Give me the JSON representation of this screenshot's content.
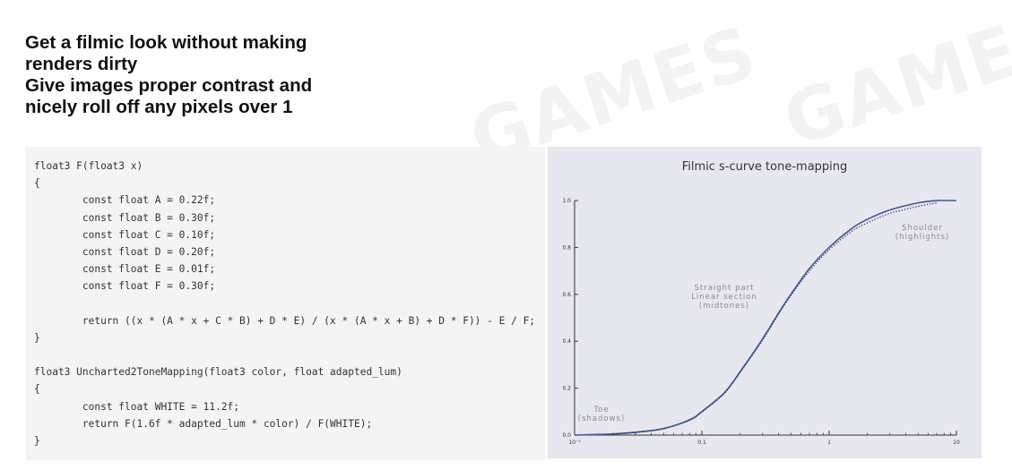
{
  "headline": {
    "lines": [
      "Get a filmic look without making",
      "renders dirty",
      "Give images proper contrast and",
      "nicely roll off any pixels over 1"
    ]
  },
  "code": {
    "lines": [
      "float3 F(float3 x)",
      "{",
      "        const float A = 0.22f;",
      "        const float B = 0.30f;",
      "        const float C = 0.10f;",
      "        const float D = 0.20f;",
      "        const float E = 0.01f;",
      "        const float F = 0.30f;",
      "",
      "        return ((x * (A * x + C * B) + D * E) / (x * (A * x + B) + D * F)) - E / F;",
      "}",
      "",
      "float3 Uncharted2ToneMapping(float3 color, float adapted_lum)",
      "{",
      "        const float WHITE = 11.2f;",
      "        return F(1.6f * adapted_lum * color) / F(WHITE);",
      "}"
    ]
  },
  "colors": {
    "chart_bg": "#e7e7ef",
    "curve": "#3f5a96",
    "dotted": "#1f2f5a",
    "label": "#8a8a8a"
  },
  "chart_data": {
    "type": "line",
    "title": "Filmic s-curve tone-mapping",
    "xscale": "log",
    "xlim": [
      0.01,
      10
    ],
    "ylim": [
      0,
      1.0
    ],
    "x_ticks": [
      "10⁻²",
      "0.1",
      "1",
      "10"
    ],
    "y_ticks": [
      "0.0",
      "0.2",
      "0.4",
      "0.6",
      "0.8",
      "1.0"
    ],
    "annotations": [
      {
        "lines": [
          "Toe",
          "(shadows)"
        ],
        "anchor": "bottom-left"
      },
      {
        "lines": [
          "Straight part",
          "Linear section",
          "(midtones)"
        ],
        "anchor": "middle"
      },
      {
        "lines": [
          "Shoulder",
          "(highlights)"
        ],
        "anchor": "top-right"
      }
    ],
    "series": [
      {
        "style": "solid",
        "x": [
          0.01,
          0.02,
          0.03,
          0.05,
          0.08,
          0.1,
          0.15,
          0.2,
          0.3,
          0.4,
          0.5,
          0.7,
          1,
          1.5,
          2,
          3,
          5,
          7,
          8,
          10
        ],
        "y": [
          0.0,
          0.005,
          0.012,
          0.028,
          0.065,
          0.1,
          0.18,
          0.27,
          0.41,
          0.52,
          0.6,
          0.71,
          0.8,
          0.88,
          0.92,
          0.96,
          0.99,
          1.0,
          1.0,
          1.0
        ]
      },
      {
        "style": "dotted",
        "x": [
          0.02,
          0.03,
          0.05,
          0.08,
          0.1,
          0.15,
          0.2,
          0.3,
          0.4,
          0.5,
          0.7,
          1,
          1.5,
          2,
          3,
          5,
          7
        ],
        "y": [
          0.004,
          0.011,
          0.027,
          0.063,
          0.098,
          0.178,
          0.268,
          0.405,
          0.515,
          0.595,
          0.7,
          0.79,
          0.868,
          0.905,
          0.945,
          0.975,
          0.99
        ]
      }
    ]
  }
}
